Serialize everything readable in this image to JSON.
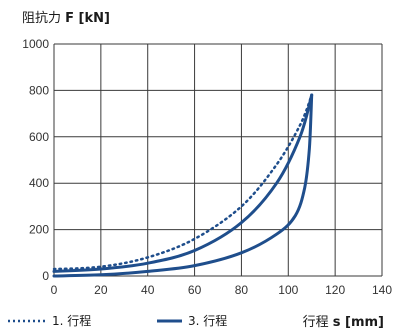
{
  "chart_data": {
    "type": "line",
    "ylabel_text": "阻抗力 ",
    "ylabel_bold": "F [kN]",
    "xlabel_text": "行程 ",
    "xlabel_bold": "s [mm]",
    "xlim": [
      0,
      140
    ],
    "ylim": [
      0,
      1000
    ],
    "x_ticks": [
      0,
      20,
      40,
      60,
      80,
      100,
      120,
      140
    ],
    "y_ticks": [
      0,
      200,
      400,
      600,
      800,
      1000
    ],
    "grid": true,
    "legend_position": "bottom-left",
    "series": [
      {
        "name": "1. 行程",
        "style": "dotted",
        "color": "#1f4e8c",
        "points": [
          [
            0,
            30
          ],
          [
            20,
            40
          ],
          [
            40,
            80
          ],
          [
            60,
            160
          ],
          [
            80,
            300
          ],
          [
            95,
            480
          ],
          [
            105,
            650
          ],
          [
            110,
            780
          ]
        ]
      },
      {
        "name": "3. 行程",
        "style": "solid",
        "color": "#1f4e8c",
        "points": [
          [
            0,
            20
          ],
          [
            20,
            30
          ],
          [
            40,
            55
          ],
          [
            60,
            110
          ],
          [
            80,
            230
          ],
          [
            95,
            400
          ],
          [
            105,
            600
          ],
          [
            110,
            780
          ]
        ]
      },
      {
        "name": "",
        "style": "solid",
        "color": "#1f4e8c",
        "points": [
          [
            0,
            0
          ],
          [
            20,
            5
          ],
          [
            40,
            20
          ],
          [
            60,
            45
          ],
          [
            80,
            100
          ],
          [
            95,
            180
          ],
          [
            103,
            260
          ],
          [
            107,
            380
          ],
          [
            109,
            550
          ],
          [
            110,
            780
          ]
        ]
      }
    ]
  }
}
